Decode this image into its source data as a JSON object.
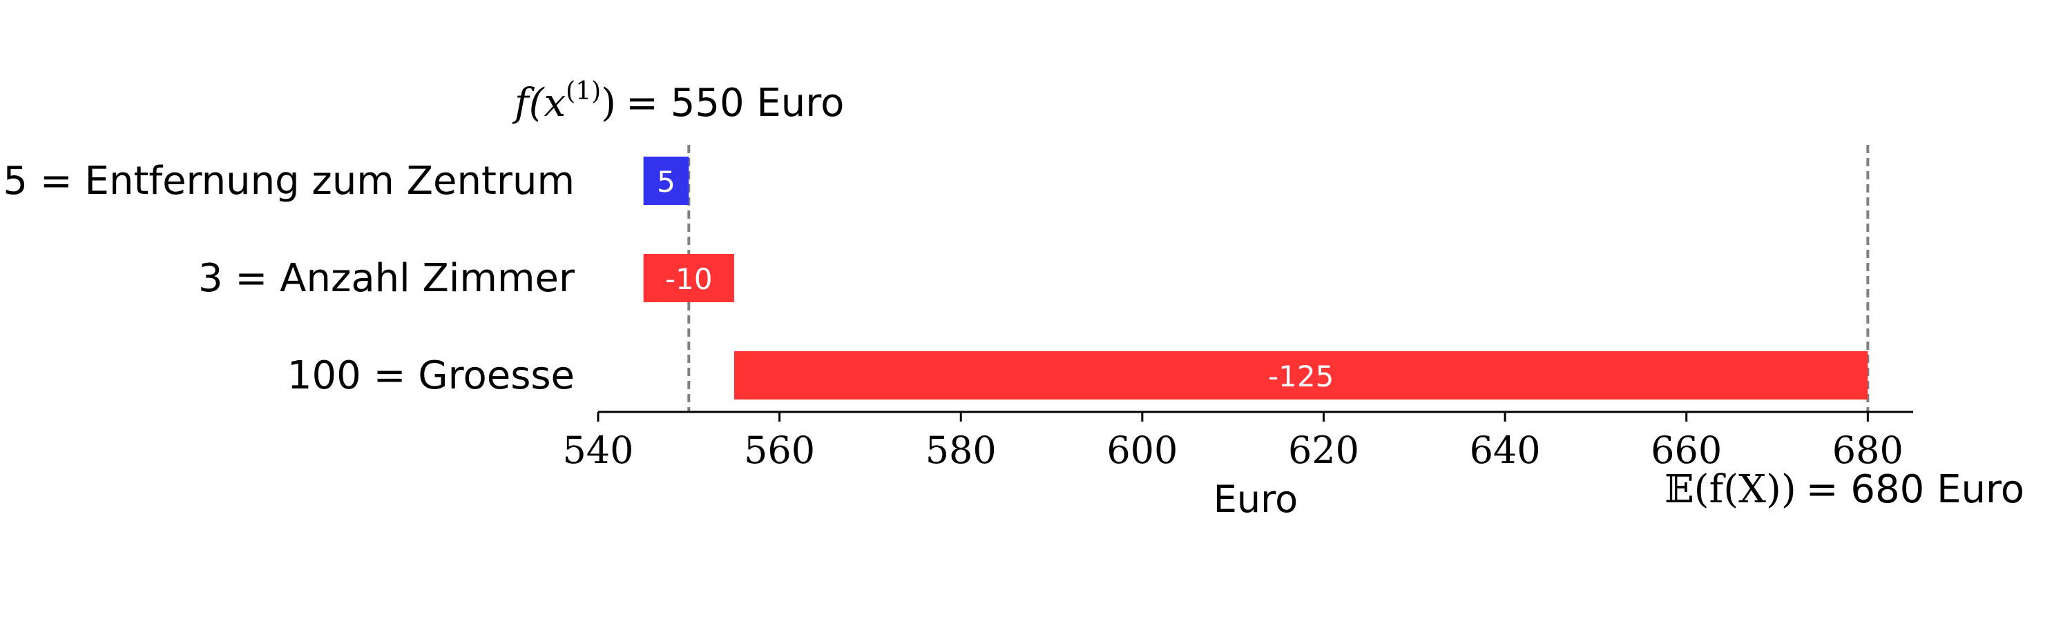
{
  "chart_data": {
    "type": "bar",
    "orientation": "horizontal",
    "categories": [
      "5 = Entfernung zum Zentrum",
      "3 = Anzahl Zimmer",
      "100 = Groesse"
    ],
    "bars": [
      {
        "start": 545,
        "end": 550,
        "label": "5",
        "color": "#3333ee"
      },
      {
        "start": 545,
        "end": 555,
        "label": "-10",
        "color": "#ff3333"
      },
      {
        "start": 555,
        "end": 680,
        "label": "-125",
        "color": "#ff3333"
      }
    ],
    "xlabel": "Euro",
    "xlim": [
      540,
      685
    ],
    "xticks": [
      540,
      560,
      580,
      600,
      620,
      640,
      660,
      680
    ],
    "reference_lines": [
      {
        "value": 550,
        "label_math": "f(x",
        "label_sup": "(1)",
        "label_close": ")",
        "label_text": "= 550 Euro"
      },
      {
        "value": 680,
        "label_math": "𝔼(f(X))",
        "label_text": "= 680 Euro"
      }
    ],
    "grid": false,
    "legend": "none"
  }
}
